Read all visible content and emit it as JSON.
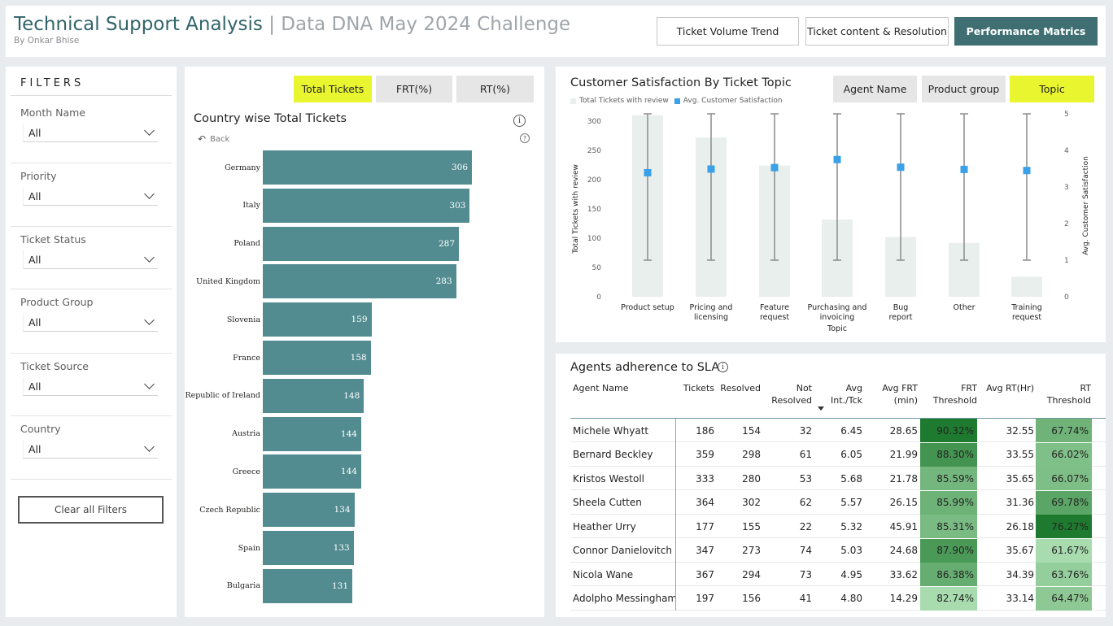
{
  "header": {
    "title_main": "Technical Support Analysis",
    "title_sep": " | ",
    "title_sub": "Data DNA May 2024 Challenge",
    "byline": "By Onkar Bhise",
    "nav": [
      {
        "label": "Ticket Volume Trend",
        "active": false
      },
      {
        "label": "Ticket content & Resolution",
        "active": false
      },
      {
        "label": "Performance Matrics",
        "active": true
      }
    ]
  },
  "filters": {
    "title": "FILTERS",
    "groups": [
      {
        "label": "Month Name",
        "value": "All"
      },
      {
        "label": "Priority",
        "value": "All"
      },
      {
        "label": "Ticket Status",
        "value": "All"
      },
      {
        "label": "Product Group",
        "value": "All"
      },
      {
        "label": "Ticket Source",
        "value": "All"
      },
      {
        "label": "Country",
        "value": "All"
      }
    ],
    "clear_label": "Clear all Filters"
  },
  "country_card": {
    "tabs": [
      {
        "label": "Total Tickets",
        "active": true
      },
      {
        "label": "FRT(%)",
        "active": false
      },
      {
        "label": "RT(%)",
        "active": false
      }
    ],
    "title": "Country wise Total Tickets",
    "info_glyph": "i",
    "help_glyph": "?",
    "back_label": "Back"
  },
  "satisfaction_card": {
    "title": "Customer Satisfaction By Ticket Topic",
    "tabs": [
      {
        "label": "Agent Name",
        "active": false
      },
      {
        "label": "Product group",
        "active": false
      },
      {
        "label": "Topic",
        "active": true
      }
    ]
  },
  "sla_card": {
    "title": "Agents adherence to SLA",
    "info_glyph": "i",
    "columns": [
      {
        "label": "Agent Name"
      },
      {
        "label": "Tickets"
      },
      {
        "label": "Resolved"
      },
      {
        "label": "Not Resolved"
      },
      {
        "label": "Avg Int./Tck"
      },
      {
        "label": "Avg FRT (min)"
      },
      {
        "label": "FRT Threshold"
      },
      {
        "label": "Avg RT(Hr)"
      },
      {
        "label": "RT Threshold"
      }
    ],
    "rows": [
      {
        "agent": "Michele Whyatt",
        "tickets": "186",
        "resolved": "154",
        "not_resolved": "32",
        "avg_int": "6.45",
        "avg_frt": "28.65",
        "frt_threshold": "90.32%",
        "frt_value": 0.9032,
        "avg_rt": "32.55",
        "rt_threshold": "67.74%",
        "rt_value": 0.6774
      },
      {
        "agent": "Bernard Beckley",
        "tickets": "359",
        "resolved": "298",
        "not_resolved": "61",
        "avg_int": "6.05",
        "avg_frt": "21.99",
        "frt_threshold": "88.30%",
        "frt_value": 0.883,
        "avg_rt": "33.55",
        "rt_threshold": "66.02%",
        "rt_value": 0.6602
      },
      {
        "agent": "Kristos Westoll",
        "tickets": "333",
        "resolved": "280",
        "not_resolved": "53",
        "avg_int": "5.68",
        "avg_frt": "21.78",
        "frt_threshold": "85.59%",
        "frt_value": 0.8559,
        "avg_rt": "35.65",
        "rt_threshold": "66.07%",
        "rt_value": 0.6607
      },
      {
        "agent": "Sheela Cutten",
        "tickets": "364",
        "resolved": "302",
        "not_resolved": "62",
        "avg_int": "5.57",
        "avg_frt": "26.15",
        "frt_threshold": "85.99%",
        "frt_value": 0.8599,
        "avg_rt": "31.36",
        "rt_threshold": "69.78%",
        "rt_value": 0.6978
      },
      {
        "agent": "Heather Urry",
        "tickets": "177",
        "resolved": "155",
        "not_resolved": "22",
        "avg_int": "5.32",
        "avg_frt": "45.91",
        "frt_threshold": "85.31%",
        "frt_value": 0.8531,
        "avg_rt": "26.18",
        "rt_threshold": "76.27%",
        "rt_value": 0.7627
      },
      {
        "agent": "Connor Danielovitch",
        "tickets": "347",
        "resolved": "273",
        "not_resolved": "74",
        "avg_int": "5.03",
        "avg_frt": "24.68",
        "frt_threshold": "87.90%",
        "frt_value": 0.879,
        "avg_rt": "35.67",
        "rt_threshold": "61.67%",
        "rt_value": 0.6167
      },
      {
        "agent": "Nicola Wane",
        "tickets": "367",
        "resolved": "294",
        "not_resolved": "73",
        "avg_int": "4.95",
        "avg_frt": "33.62",
        "frt_threshold": "86.38%",
        "frt_value": 0.8638,
        "avg_rt": "34.39",
        "rt_threshold": "63.76%",
        "rt_value": 0.6376
      },
      {
        "agent": "Adolpho Messingham",
        "tickets": "197",
        "resolved": "156",
        "not_resolved": "41",
        "avg_int": "4.80",
        "avg_frt": "14.29",
        "frt_threshold": "82.74%",
        "frt_value": 0.8274,
        "avg_rt": "33.14",
        "rt_threshold": "64.47%",
        "rt_value": 0.6447
      }
    ]
  },
  "colors": {
    "accent": "#3f6f73",
    "bar": "#528c91",
    "highlight": "#e8f52f",
    "satisfaction_marker": "#3aa0e8",
    "tickets_bar": "#e8efec",
    "cf_low": "#a8dcae",
    "cf_high": "#1e7a2e"
  },
  "chart_data": [
    {
      "type": "bar",
      "orientation": "horizontal",
      "title": "Country wise Total Tickets",
      "categories": [
        "Germany",
        "Italy",
        "Poland",
        "United Kingdom",
        "Slovenia",
        "France",
        "Republic of Ireland",
        "Austria",
        "Greece",
        "Czech Republic",
        "Spain",
        "Bulgaria"
      ],
      "values": [
        306,
        303,
        287,
        283,
        159,
        158,
        148,
        144,
        144,
        134,
        133,
        131
      ],
      "data_labels": true
    },
    {
      "type": "bar",
      "title": "Customer Satisfaction By Ticket Topic",
      "xlabel": "Topic",
      "categories": [
        "Product setup",
        "Pricing and licensing",
        "Feature request",
        "Purchasing and invoicing",
        "Bug report",
        "Other",
        "Training request"
      ],
      "series": [
        {
          "name": "Total Tickets with review",
          "type": "bar",
          "axis": "left",
          "values": [
            310,
            272,
            224,
            132,
            102,
            92,
            34
          ]
        },
        {
          "name": "Avg. Customer Satisfaction",
          "type": "point",
          "axis": "right",
          "values": [
            3.39,
            3.49,
            3.53,
            3.75,
            3.54,
            3.48,
            3.45
          ],
          "range_low": [
            1.0,
            1.0,
            1.0,
            1.0,
            1.0,
            1.0,
            1.0
          ],
          "range_high": [
            5.0,
            5.0,
            5.0,
            5.0,
            5.0,
            5.0,
            5.0
          ]
        }
      ],
      "y_left": {
        "label": "Total Tickets with review",
        "ylim": [
          0,
          300
        ],
        "ticks": [
          "0",
          "50",
          "100",
          "150",
          "200",
          "250",
          "300"
        ]
      },
      "y_right": {
        "label": "Avg. Customer Satisfaction",
        "ylim": [
          0,
          5
        ],
        "ticks": [
          "0",
          "1",
          "2",
          "3",
          "4",
          "5"
        ]
      },
      "legend_placement": "top-left",
      "grid": false
    }
  ]
}
